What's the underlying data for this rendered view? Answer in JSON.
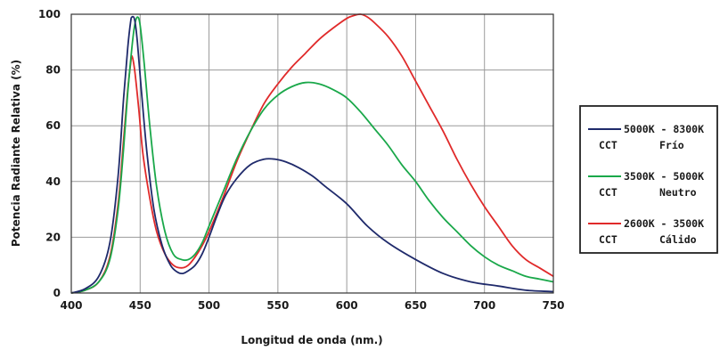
{
  "chart_data": {
    "type": "line",
    "xlabel": "Longitud de onda (nm.)",
    "ylabel": "Potencia Radiante Relativa (%)",
    "xlim": [
      400,
      750
    ],
    "ylim": [
      0,
      100
    ],
    "x_ticks": [
      "400",
      "450",
      "500",
      "550",
      "600",
      "650",
      "700",
      "750"
    ],
    "y_ticks": [
      "0",
      "20",
      "40",
      "60",
      "80",
      "100"
    ],
    "grid": true,
    "legend_position": "right",
    "series": [
      {
        "legend_line1": "5000K - 8300K",
        "legend_line2_left": "CCT",
        "legend_line2_right": "Frío",
        "color": "#1f2a6b",
        "points": [
          [
            400,
            0
          ],
          [
            410,
            1.5
          ],
          [
            420,
            6
          ],
          [
            428,
            18
          ],
          [
            434,
            42
          ],
          [
            438,
            70
          ],
          [
            441,
            88
          ],
          [
            443,
            97
          ],
          [
            444,
            99
          ],
          [
            446,
            98
          ],
          [
            448,
            90
          ],
          [
            451,
            72
          ],
          [
            455,
            50
          ],
          [
            460,
            30
          ],
          [
            466,
            17
          ],
          [
            472,
            10
          ],
          [
            477,
            7.5
          ],
          [
            481,
            7
          ],
          [
            485,
            8
          ],
          [
            490,
            10
          ],
          [
            495,
            14
          ],
          [
            500,
            20
          ],
          [
            506,
            28
          ],
          [
            512,
            35
          ],
          [
            520,
            41
          ],
          [
            530,
            46
          ],
          [
            540,
            48
          ],
          [
            548,
            48
          ],
          [
            556,
            47
          ],
          [
            565,
            45
          ],
          [
            575,
            42
          ],
          [
            585,
            38
          ],
          [
            600,
            32
          ],
          [
            615,
            24
          ],
          [
            630,
            18
          ],
          [
            650,
            12
          ],
          [
            670,
            7
          ],
          [
            690,
            4
          ],
          [
            710,
            2.5
          ],
          [
            730,
            1
          ],
          [
            750,
            0.5
          ]
        ]
      },
      {
        "legend_line1": "3500K - 5000K",
        "legend_line2_left": "CCT",
        "legend_line2_right": "Neutro",
        "color": "#1aa84a",
        "points": [
          [
            400,
            0
          ],
          [
            410,
            1
          ],
          [
            420,
            4
          ],
          [
            428,
            12
          ],
          [
            434,
            30
          ],
          [
            438,
            52
          ],
          [
            441,
            72
          ],
          [
            444,
            88
          ],
          [
            446,
            96
          ],
          [
            448,
            99
          ],
          [
            450,
            96
          ],
          [
            453,
            82
          ],
          [
            457,
            60
          ],
          [
            462,
            38
          ],
          [
            468,
            22
          ],
          [
            474,
            14
          ],
          [
            480,
            12
          ],
          [
            485,
            12
          ],
          [
            490,
            14
          ],
          [
            495,
            18
          ],
          [
            500,
            24
          ],
          [
            510,
            36
          ],
          [
            520,
            48
          ],
          [
            530,
            58
          ],
          [
            540,
            66
          ],
          [
            550,
            71
          ],
          [
            560,
            74
          ],
          [
            570,
            75.5
          ],
          [
            580,
            75
          ],
          [
            590,
            73
          ],
          [
            600,
            70
          ],
          [
            610,
            65
          ],
          [
            620,
            59
          ],
          [
            630,
            53
          ],
          [
            640,
            46
          ],
          [
            650,
            40
          ],
          [
            660,
            33
          ],
          [
            670,
            27
          ],
          [
            680,
            22
          ],
          [
            690,
            17
          ],
          [
            700,
            13
          ],
          [
            710,
            10
          ],
          [
            720,
            8
          ],
          [
            730,
            6
          ],
          [
            740,
            5
          ],
          [
            750,
            4
          ]
        ]
      },
      {
        "legend_line1": "2600K - 3500K",
        "legend_line2_left": "CCT",
        "legend_line2_right": "Cálido",
        "color": "#e02a2a",
        "points": [
          [
            400,
            0
          ],
          [
            410,
            1
          ],
          [
            420,
            4
          ],
          [
            428,
            13
          ],
          [
            434,
            32
          ],
          [
            438,
            55
          ],
          [
            441,
            73
          ],
          [
            443,
            82
          ],
          [
            444,
            85
          ],
          [
            446,
            80
          ],
          [
            449,
            66
          ],
          [
            452,
            50
          ],
          [
            457,
            34
          ],
          [
            462,
            22
          ],
          [
            468,
            14
          ],
          [
            474,
            10
          ],
          [
            480,
            9
          ],
          [
            485,
            10
          ],
          [
            490,
            13
          ],
          [
            495,
            17
          ],
          [
            500,
            22
          ],
          [
            510,
            34
          ],
          [
            520,
            47
          ],
          [
            530,
            58
          ],
          [
            540,
            68
          ],
          [
            550,
            75
          ],
          [
            560,
            81
          ],
          [
            570,
            86
          ],
          [
            580,
            91
          ],
          [
            590,
            95
          ],
          [
            600,
            98.5
          ],
          [
            605,
            99.5
          ],
          [
            610,
            100
          ],
          [
            615,
            99
          ],
          [
            620,
            97
          ],
          [
            630,
            92
          ],
          [
            640,
            85
          ],
          [
            650,
            76
          ],
          [
            660,
            67
          ],
          [
            670,
            58
          ],
          [
            680,
            48
          ],
          [
            690,
            39
          ],
          [
            700,
            31
          ],
          [
            710,
            24
          ],
          [
            720,
            17
          ],
          [
            730,
            12
          ],
          [
            740,
            9
          ],
          [
            750,
            6
          ]
        ]
      }
    ]
  }
}
